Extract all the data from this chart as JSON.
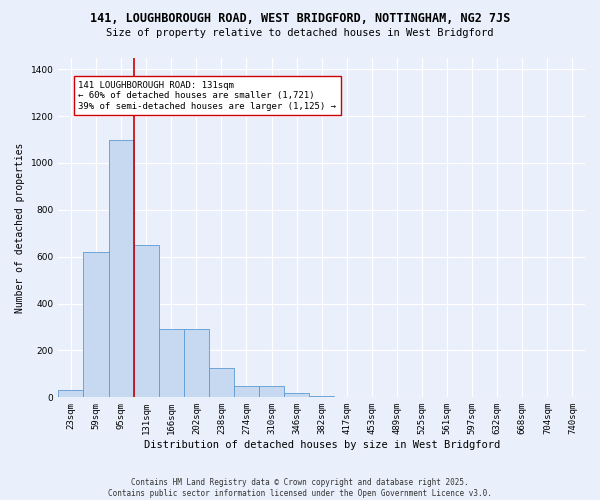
{
  "title1": "141, LOUGHBOROUGH ROAD, WEST BRIDGFORD, NOTTINGHAM, NG2 7JS",
  "title2": "Size of property relative to detached houses in West Bridgford",
  "xlabel": "Distribution of detached houses by size in West Bridgford",
  "ylabel": "Number of detached properties",
  "categories": [
    "23sqm",
    "59sqm",
    "95sqm",
    "131sqm",
    "166sqm",
    "202sqm",
    "238sqm",
    "274sqm",
    "310sqm",
    "346sqm",
    "382sqm",
    "417sqm",
    "453sqm",
    "489sqm",
    "525sqm",
    "561sqm",
    "597sqm",
    "632sqm",
    "668sqm",
    "704sqm",
    "740sqm"
  ],
  "bar_values": [
    30,
    620,
    1100,
    650,
    290,
    290,
    125,
    50,
    50,
    20,
    5,
    0,
    0,
    0,
    0,
    0,
    0,
    0,
    0,
    0,
    0
  ],
  "bar_color": "#c6d9f0",
  "bar_edge_color": "#5b9bd5",
  "vline_color": "#cc0000",
  "vline_x": 2.5,
  "annotation_text": "141 LOUGHBOROUGH ROAD: 131sqm\n← 60% of detached houses are smaller (1,721)\n39% of semi-detached houses are larger (1,125) →",
  "annotation_box_color": "#ffffff",
  "annotation_box_edge": "#cc0000",
  "ylim": [
    0,
    1450
  ],
  "yticks": [
    0,
    200,
    400,
    600,
    800,
    1000,
    1200,
    1400
  ],
  "bg_color": "#eaf0fb",
  "plot_bg_color": "#eaf0fb",
  "grid_color": "#ffffff",
  "footer": "Contains HM Land Registry data © Crown copyright and database right 2025.\nContains public sector information licensed under the Open Government Licence v3.0.",
  "title1_fontsize": 8.5,
  "title2_fontsize": 7.5,
  "xlabel_fontsize": 7.5,
  "ylabel_fontsize": 7,
  "tick_fontsize": 6.5,
  "annotation_fontsize": 6.5,
  "footer_fontsize": 5.5
}
